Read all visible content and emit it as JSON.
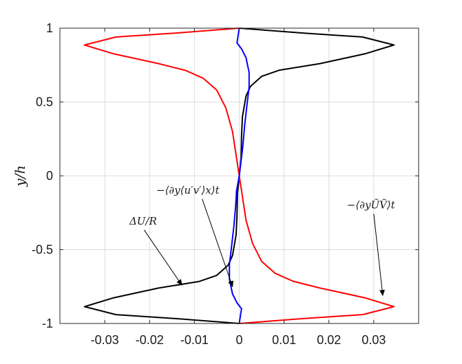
{
  "chart_data": {
    "type": "line",
    "xlim": [
      -0.04,
      0.04
    ],
    "ylim": [
      -1,
      1
    ],
    "grid": true,
    "ylabel": "y/h",
    "xlabel": "",
    "xticks": [
      -0.03,
      -0.02,
      -0.01,
      0,
      0.01,
      0.02,
      0.03
    ],
    "xtick_labels": [
      "-0.03",
      "-0.02",
      "-0.01",
      "0",
      "0.01",
      "0.02",
      "0.03"
    ],
    "yticks": [
      -1,
      -0.5,
      0,
      0.5,
      1
    ],
    "ytick_labels": [
      "-1",
      "-0.5",
      "0",
      "0.5",
      "1"
    ],
    "series": [
      {
        "name": "ΔU/R",
        "color": "#000000",
        "points": [
          [
            0.0,
            1.0
          ],
          [
            0.0145,
            0.966
          ],
          [
            0.0275,
            0.94
          ],
          [
            0.0345,
            0.886
          ],
          [
            0.028,
            0.826
          ],
          [
            0.018,
            0.76
          ],
          [
            0.009,
            0.716
          ],
          [
            0.005,
            0.674
          ],
          [
            0.0025,
            0.606
          ],
          [
            0.0015,
            0.54
          ],
          [
            0.0007,
            0.4
          ],
          [
            0.0005,
            0.27
          ],
          [
            0.0004,
            0.12
          ],
          [
            0.0,
            0.0
          ],
          [
            -0.0004,
            -0.12
          ],
          [
            -0.0005,
            -0.27
          ],
          [
            -0.0007,
            -0.4
          ],
          [
            -0.0015,
            -0.54
          ],
          [
            -0.0025,
            -0.606
          ],
          [
            -0.005,
            -0.674
          ],
          [
            -0.009,
            -0.716
          ],
          [
            -0.018,
            -0.76
          ],
          [
            -0.028,
            -0.826
          ],
          [
            -0.0345,
            -0.886
          ],
          [
            -0.0275,
            -0.94
          ],
          [
            -0.0145,
            -0.966
          ],
          [
            0.0,
            -1.0
          ]
        ]
      },
      {
        "name": "−⟨∂_y ŨṼ⟩_t",
        "color": "#ff0000",
        "points": [
          [
            0.0,
            1.0
          ],
          [
            -0.0145,
            0.966
          ],
          [
            -0.0275,
            0.94
          ],
          [
            -0.0345,
            0.886
          ],
          [
            -0.028,
            0.826
          ],
          [
            -0.018,
            0.76
          ],
          [
            -0.012,
            0.714
          ],
          [
            -0.008,
            0.66
          ],
          [
            -0.005,
            0.58
          ],
          [
            -0.003,
            0.46
          ],
          [
            -0.0015,
            0.3
          ],
          [
            -0.0007,
            0.14
          ],
          [
            0.0,
            0.0
          ],
          [
            0.0007,
            -0.14
          ],
          [
            0.0015,
            -0.3
          ],
          [
            0.003,
            -0.46
          ],
          [
            0.005,
            -0.58
          ],
          [
            0.008,
            -0.66
          ],
          [
            0.012,
            -0.714
          ],
          [
            0.018,
            -0.76
          ],
          [
            0.028,
            -0.826
          ],
          [
            0.0345,
            -0.886
          ],
          [
            0.0275,
            -0.94
          ],
          [
            0.0145,
            -0.966
          ],
          [
            0.0,
            -1.0
          ]
        ]
      },
      {
        "name": "−⟨∂_y⟨u′v′⟩_x⟩_t",
        "color": "#0000ff",
        "points": [
          [
            0.0,
            1.0
          ],
          [
            -0.0005,
            0.9
          ],
          [
            0.0005,
            0.86
          ],
          [
            0.0015,
            0.8
          ],
          [
            0.0022,
            0.7
          ],
          [
            0.0022,
            0.6
          ],
          [
            0.0018,
            0.5
          ],
          [
            0.0012,
            0.34
          ],
          [
            0.0008,
            0.2
          ],
          [
            0.0004,
            0.1
          ],
          [
            0.0,
            0.0
          ],
          [
            -0.0006,
            -0.1
          ],
          [
            -0.0008,
            -0.2
          ],
          [
            -0.0012,
            -0.34
          ],
          [
            -0.0018,
            -0.5
          ],
          [
            -0.0022,
            -0.6
          ],
          [
            -0.0022,
            -0.7
          ],
          [
            -0.0015,
            -0.8
          ],
          [
            -0.0005,
            -0.86
          ],
          [
            0.0005,
            -0.9
          ],
          [
            0.0,
            -1.0
          ]
        ]
      }
    ],
    "annotations": [
      {
        "label": "−⟨∂y⟨u′v′⟩x⟩t",
        "text_at": [
          -0.0185,
          -0.12
        ],
        "arrow_to": [
          -0.0015,
          -0.75
        ]
      },
      {
        "label": "ΔU/R",
        "text_at": [
          -0.0245,
          -0.33
        ],
        "arrow_to": [
          -0.0128,
          -0.74
        ]
      },
      {
        "label": "−⟨∂yŨṼ⟩t",
        "text_at": [
          0.024,
          -0.22
        ],
        "arrow_to": [
          0.032,
          -0.81
        ]
      }
    ]
  }
}
